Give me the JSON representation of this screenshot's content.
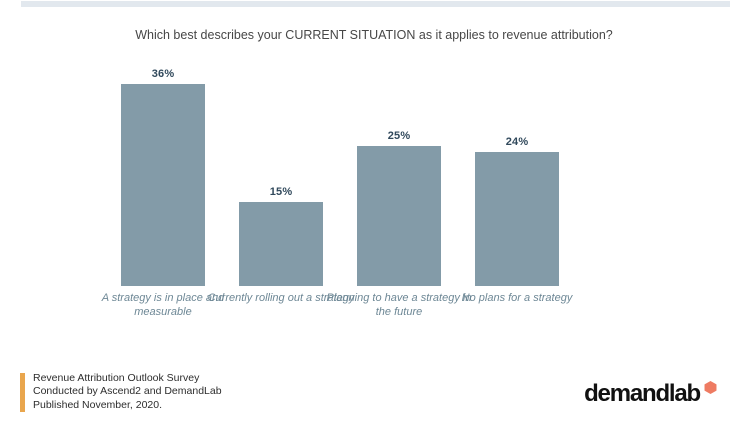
{
  "page": {
    "background": "#ffffff",
    "top_strip_color": "#e2e8ee"
  },
  "chart_data": {
    "type": "bar",
    "title": "Which best describes your CURRENT SITUATION as it applies to revenue attribution?",
    "categories": [
      "A strategy is in place and measurable",
      "Currently rolling out a strategy",
      "Planning to have a strategy in the future",
      "No plans for a strategy"
    ],
    "values": [
      36,
      15,
      25,
      24
    ],
    "value_labels": [
      "36%",
      "15%",
      "25%",
      "24%"
    ],
    "bar_color": "#839ba8",
    "value_label_color": "#31495c",
    "category_label_color": "#6d8795",
    "xlabel": "",
    "ylabel": "",
    "ylim": [
      0,
      40
    ],
    "grid": false,
    "legend": false,
    "axis_visible": false
  },
  "footer": {
    "accent_color": "#e9a64d",
    "lines": [
      "Revenue Attribution Outlook Survey",
      "Conducted by Ascend2 and DemandLab",
      "Published November, 2020."
    ]
  },
  "logo": {
    "text": "demandlab",
    "text_color": "#111111",
    "dot_color": "#ee7b62"
  }
}
